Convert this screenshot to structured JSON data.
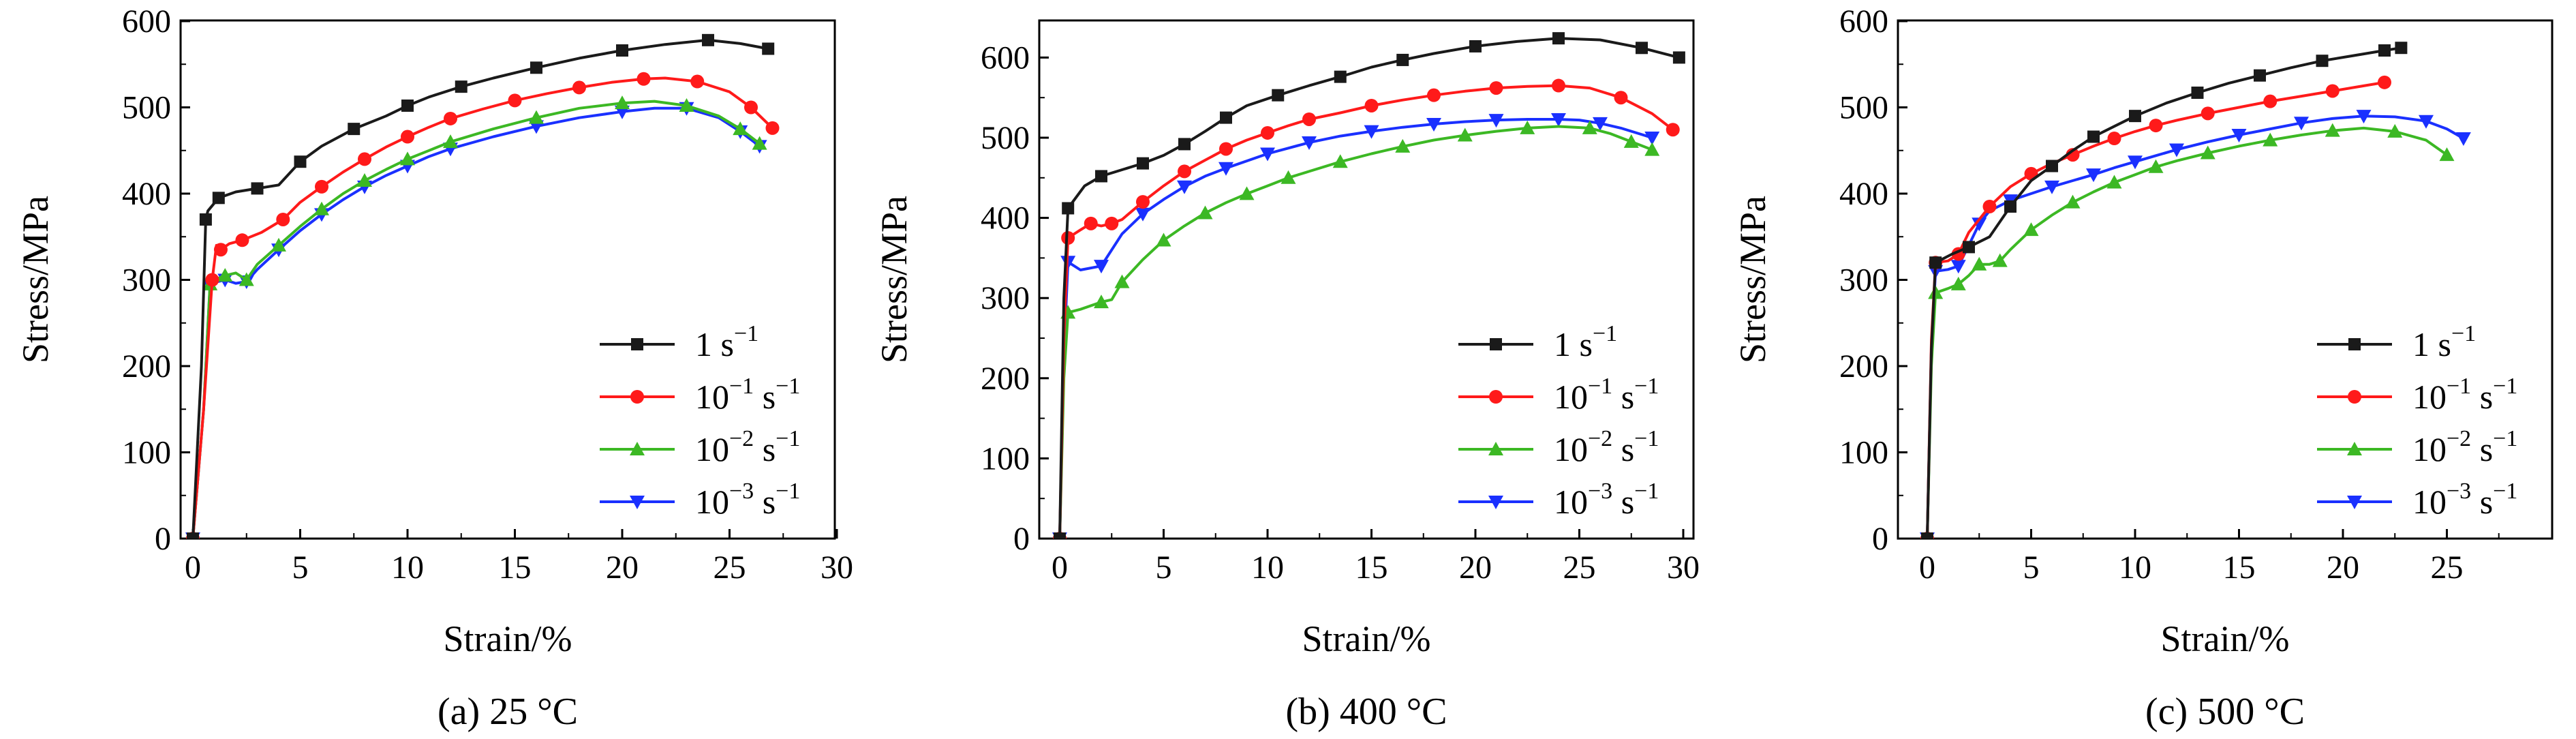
{
  "figure": {
    "panels": [
      {
        "caption": "(a) 25 °C",
        "xlabel": "Strain/%",
        "ylabel": "Stress/MPa",
        "xticks": [
          "0",
          "5",
          "10",
          "15",
          "20",
          "25",
          "30"
        ],
        "yticks": [
          "0",
          "100",
          "200",
          "300",
          "400",
          "500",
          "600"
        ]
      },
      {
        "caption": "(b) 400 °C",
        "xlabel": "Strain/%",
        "ylabel": "Stress/MPa",
        "xticks": [
          "0",
          "5",
          "10",
          "15",
          "20",
          "25",
          "30"
        ],
        "yticks": [
          "0",
          "100",
          "200",
          "300",
          "400",
          "500",
          "600"
        ]
      },
      {
        "caption": "(c) 500 °C",
        "xlabel": "Strain/%",
        "ylabel": "Stress/MPa",
        "xticks": [
          "0",
          "5",
          "10",
          "15",
          "20",
          "25"
        ],
        "yticks": [
          "0",
          "100",
          "200",
          "300",
          "400",
          "500",
          "600"
        ]
      }
    ],
    "legend": [
      {
        "base": "1 s",
        "exp": "−1"
      },
      {
        "base": "10",
        "exp1": "−1",
        "mid": " s",
        "exp2": "−1"
      },
      {
        "base": "10",
        "exp1": "−2",
        "mid": " s",
        "exp2": "−1"
      },
      {
        "base": "10",
        "exp1": "−3",
        "mid": " s",
        "exp2": "−1"
      }
    ]
  },
  "series_style": [
    {
      "color": "#1a1a1a",
      "marker": "square"
    },
    {
      "color": "#ff1a1a",
      "marker": "circle"
    },
    {
      "color": "#3cb824",
      "marker": "triangle-up"
    },
    {
      "color": "#1a30ff",
      "marker": "triangle-down"
    }
  ],
  "chart_data": [
    {
      "type": "line",
      "title": "(a) 25 °C",
      "xlabel": "Strain/%",
      "ylabel": "Stress/MPa",
      "xlim": [
        -1,
        30
      ],
      "ylim": [
        0,
        600
      ],
      "grid": false,
      "legend_position": "right-middle",
      "series": [
        {
          "name": "1 s⁻¹",
          "x": [
            0,
            0.4,
            0.6,
            0.7,
            1.2,
            2,
            3,
            4,
            5,
            6,
            7.5,
            9,
            10,
            11,
            12.5,
            14,
            16,
            18,
            20,
            22,
            24,
            25.5,
            26.8
          ],
          "y": [
            0,
            200,
            370,
            380,
            395,
            402,
            406,
            410,
            437,
            455,
            475,
            490,
            502,
            512,
            524,
            534,
            546,
            557,
            566,
            573,
            578,
            574,
            568
          ]
        },
        {
          "name": "10⁻¹ s⁻¹",
          "x": [
            0,
            0.5,
            0.9,
            1.1,
            1.3,
            1.7,
            2.3,
            3.2,
            4.2,
            5,
            6,
            7,
            8,
            9,
            10,
            11,
            12,
            13.5,
            15,
            16.5,
            18,
            19.5,
            21,
            22,
            23.5,
            25,
            26,
            27
          ],
          "y": [
            0,
            150,
            300,
            340,
            335,
            342,
            346,
            355,
            370,
            390,
            408,
            425,
            440,
            454,
            466,
            477,
            487,
            498,
            508,
            516,
            523,
            529,
            533,
            534,
            530,
            518,
            500,
            476
          ]
        },
        {
          "name": "10⁻² s⁻¹",
          "x": [
            0,
            0.5,
            0.8,
            1.0,
            1.5,
            2.0,
            2.5,
            3,
            4,
            5,
            6,
            7,
            8,
            9,
            10,
            11,
            12,
            14,
            16,
            18,
            20,
            21.5,
            23,
            24.5,
            25.5,
            26.4
          ],
          "y": [
            0,
            150,
            295,
            300,
            305,
            308,
            300,
            318,
            340,
            362,
            382,
            400,
            415,
            428,
            440,
            450,
            460,
            475,
            488,
            499,
            505,
            507,
            502,
            490,
            475,
            458
          ]
        },
        {
          "name": "10⁻³ s⁻¹",
          "x": [
            0,
            0.5,
            0.8,
            1.0,
            1.5,
            2.0,
            2.5,
            3,
            4,
            5,
            6,
            7,
            8,
            9,
            10,
            11,
            12,
            14,
            16,
            18,
            20,
            21.5,
            23,
            24.5,
            25.5,
            26.4
          ],
          "y": [
            0,
            150,
            293,
            297,
            300,
            296,
            298,
            312,
            335,
            357,
            376,
            393,
            408,
            421,
            432,
            443,
            452,
            466,
            478,
            488,
            495,
            499,
            499,
            488,
            472,
            455
          ]
        }
      ]
    },
    {
      "type": "line",
      "title": "(b) 400 °C",
      "xlabel": "Strain/%",
      "ylabel": "Stress/MPa",
      "xlim": [
        -1,
        30
      ],
      "ylim": [
        0,
        650
      ],
      "grid": false,
      "legend_position": "right-middle",
      "series": [
        {
          "name": "1 s⁻¹",
          "x": [
            0,
            0.2,
            0.4,
            1.2,
            2,
            3,
            4,
            5,
            6,
            7,
            8,
            9,
            10.5,
            12,
            13.5,
            15,
            16.5,
            18,
            20,
            22,
            24,
            26,
            28,
            29.8
          ],
          "y": [
            0,
            300,
            412,
            440,
            452,
            460,
            468,
            478,
            492,
            508,
            525,
            540,
            553,
            565,
            576,
            588,
            597,
            605,
            614,
            620,
            624,
            622,
            612,
            600
          ]
        },
        {
          "name": "10⁻¹ s⁻¹",
          "x": [
            0,
            0.2,
            0.4,
            1,
            1.5,
            2,
            2.5,
            3,
            4,
            5,
            6,
            7,
            8,
            9,
            10,
            11,
            12,
            13.5,
            15,
            16.5,
            18,
            19.5,
            21,
            22.5,
            24,
            25.5,
            27,
            28.5,
            29.5
          ],
          "y": [
            0,
            250,
            375,
            385,
            393,
            390,
            393,
            398,
            420,
            440,
            458,
            472,
            486,
            497,
            506,
            515,
            523,
            531,
            540,
            547,
            553,
            558,
            562,
            564,
            565,
            562,
            550,
            530,
            510
          ]
        },
        {
          "name": "10⁻² s⁻¹",
          "x": [
            0,
            0.2,
            0.4,
            1,
            2,
            2.5,
            3,
            4,
            5,
            6,
            7,
            8,
            9,
            10,
            11,
            12,
            13.5,
            15,
            16.5,
            18,
            19.5,
            21,
            22.5,
            24,
            25.5,
            26.5,
            27.5,
            28.5
          ],
          "y": [
            0,
            200,
            282,
            286,
            295,
            298,
            320,
            348,
            372,
            390,
            406,
            419,
            430,
            440,
            450,
            458,
            470,
            480,
            489,
            497,
            503,
            508,
            512,
            514,
            512,
            505,
            495,
            485
          ]
        },
        {
          "name": "10⁻³ s⁻¹",
          "x": [
            0,
            0.2,
            0.4,
            1,
            2,
            3,
            4,
            5,
            6,
            7,
            8,
            9,
            10,
            11,
            12,
            13.5,
            15,
            16.5,
            18,
            19.5,
            21,
            22.5,
            24,
            25,
            26,
            27,
            28.5
          ],
          "y": [
            0,
            230,
            345,
            335,
            340,
            380,
            405,
            423,
            439,
            452,
            462,
            471,
            480,
            487,
            494,
            502,
            508,
            513,
            517,
            520,
            522,
            523,
            523,
            522,
            518,
            512,
            500
          ]
        }
      ]
    },
    {
      "type": "line",
      "title": "(c) 500 °C",
      "xlabel": "Strain/%",
      "ylabel": "Stress/MPa",
      "xlim": [
        -1,
        27
      ],
      "ylim": [
        0,
        600
      ],
      "grid": false,
      "legend_position": "right-middle",
      "series": [
        {
          "name": "1 s⁻¹",
          "x": [
            0,
            0.2,
            0.4,
            1.2,
            2,
            3,
            4,
            5,
            6,
            7,
            8,
            9,
            10,
            11.5,
            13,
            14.5,
            16,
            17.5,
            19,
            20.5,
            22,
            22.8
          ],
          "y": [
            0,
            220,
            320,
            330,
            338,
            350,
            385,
            415,
            432,
            450,
            466,
            478,
            490,
            505,
            517,
            528,
            537,
            546,
            554,
            560,
            566,
            569
          ]
        },
        {
          "name": "10⁻¹ s⁻¹",
          "x": [
            0,
            0.2,
            0.4,
            1,
            1.5,
            2,
            3,
            4,
            5,
            6,
            7,
            8,
            9,
            10,
            11,
            12,
            13.5,
            15,
            16.5,
            18,
            19.5,
            21,
            22
          ],
          "y": [
            0,
            230,
            320,
            322,
            330,
            355,
            385,
            408,
            423,
            435,
            445,
            455,
            464,
            472,
            479,
            485,
            493,
            500,
            507,
            513,
            519,
            525,
            529
          ]
        },
        {
          "name": "10⁻² s⁻¹",
          "x": [
            0,
            0.2,
            0.4,
            1,
            1.5,
            2,
            2.5,
            3,
            3.5,
            4,
            5,
            6,
            7,
            8,
            9,
            10,
            11,
            12,
            13.5,
            15,
            16.5,
            18,
            19.5,
            21,
            22.5,
            24,
            25
          ],
          "y": [
            0,
            200,
            285,
            290,
            295,
            305,
            318,
            318,
            322,
            335,
            358,
            375,
            390,
            402,
            413,
            422,
            431,
            438,
            447,
            455,
            462,
            468,
            473,
            476,
            472,
            462,
            445
          ]
        },
        {
          "name": "10⁻³ s⁻¹",
          "x": [
            0,
            0.2,
            0.4,
            1,
            1.5,
            2,
            2.5,
            3,
            4,
            5,
            6,
            7,
            8,
            9,
            10,
            11,
            12,
            13.5,
            15,
            16.5,
            18,
            19.5,
            21,
            22.5,
            24,
            25,
            25.8
          ],
          "y": [
            0,
            220,
            310,
            312,
            316,
            340,
            365,
            380,
            392,
            400,
            408,
            415,
            422,
            430,
            437,
            444,
            451,
            460,
            468,
            475,
            482,
            487,
            490,
            489,
            484,
            475,
            464
          ]
        }
      ]
    }
  ]
}
